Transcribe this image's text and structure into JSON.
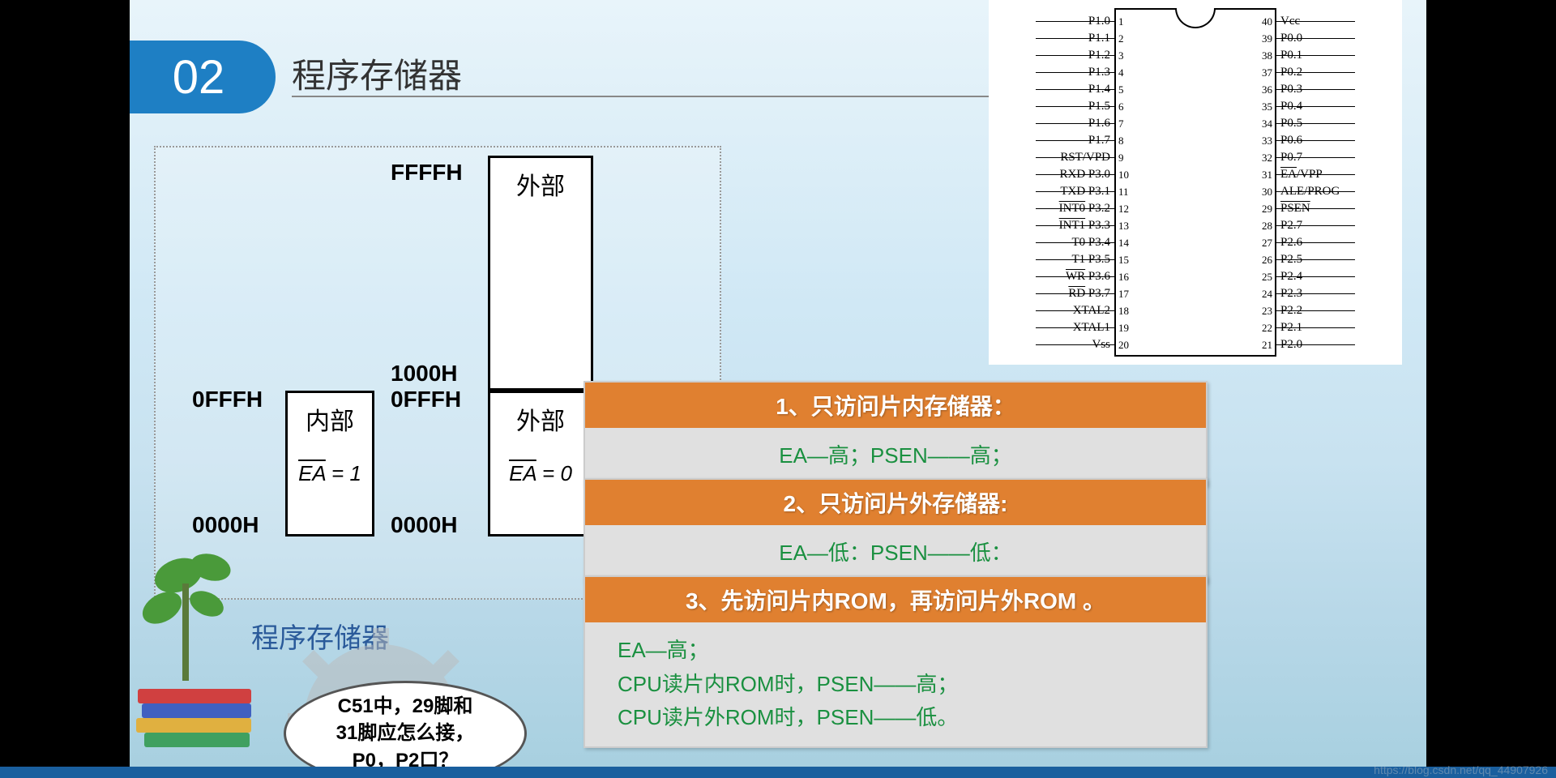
{
  "badge": "02",
  "title": "程序存储器",
  "memory": {
    "caption": "程序存储器",
    "top_addr": "FFFFH",
    "mid_addr_left": "0FFFH",
    "mid_addr_right_top": "1000H",
    "mid_addr_right": "0FFFH",
    "bot_addr_left": "0000H",
    "bot_addr_right": "0000H",
    "ext_upper": "外部",
    "int_label": "内部",
    "ext_lower": "外部",
    "ea1_prefix": "EA",
    "ea1_suffix": " = 1",
    "ea0_prefix": "EA",
    "ea0_suffix": " = 0"
  },
  "bubble": {
    "l1": "C51中，29脚和",
    "l2": "31脚应怎么接，",
    "l3": "P0，P2口？"
  },
  "pins": {
    "left": [
      "P1.0",
      "P1.1",
      "P1.2",
      "P1.3",
      "P1.4",
      "P1.5",
      "P1.6",
      "P1.7",
      "RST/VPD",
      "RXD P3.0",
      "TXD P3.1",
      "INT0 P3.2",
      "INT1 P3.3",
      "T0 P3.4",
      "T1 P3.5",
      "WR P3.6",
      "RD P3.7",
      "XTAL2",
      "XTAL1",
      "Vss"
    ],
    "left_ov": [
      false,
      false,
      false,
      false,
      false,
      false,
      false,
      false,
      false,
      false,
      false,
      true,
      true,
      false,
      false,
      true,
      true,
      false,
      false,
      false
    ],
    "right": [
      "Vcc",
      "P0.0",
      "P0.1",
      "P0.2",
      "P0.3",
      "P0.4",
      "P0.5",
      "P0.6",
      "P0.7",
      "EA/VPP",
      "ALE/PROG",
      "PSEN",
      "P2.7",
      "P2.6",
      "P2.5",
      "P2.4",
      "P2.3",
      "P2.2",
      "P2.1",
      "P2.0"
    ],
    "right_ov": [
      false,
      false,
      false,
      false,
      false,
      false,
      false,
      false,
      false,
      true,
      false,
      true,
      false,
      false,
      false,
      false,
      false,
      false,
      false,
      false
    ]
  },
  "rules": [
    {
      "head": "1、只访问片内存储器：",
      "body": [
        "EA—高；PSEN——高；"
      ],
      "align": "center"
    },
    {
      "head": "2、只访问片外存储器:",
      "body": [
        "EA—低：PSEN——低："
      ],
      "align": "center"
    },
    {
      "head": "3、先访问片内ROM，再访问片外ROM 。",
      "body": [
        "EA—高；",
        "CPU读片内ROM时，PSEN——高；",
        "CPU读片外ROM时，PSEN——低。"
      ],
      "align": "left"
    }
  ],
  "rule_positions": [
    470,
    590,
    710
  ],
  "colors": {
    "badge": "#1e7fc4",
    "rule_head": "#e08030",
    "rule_body": "#1a9040"
  },
  "watermark": "https://blog.csdn.net/qq_44907926"
}
